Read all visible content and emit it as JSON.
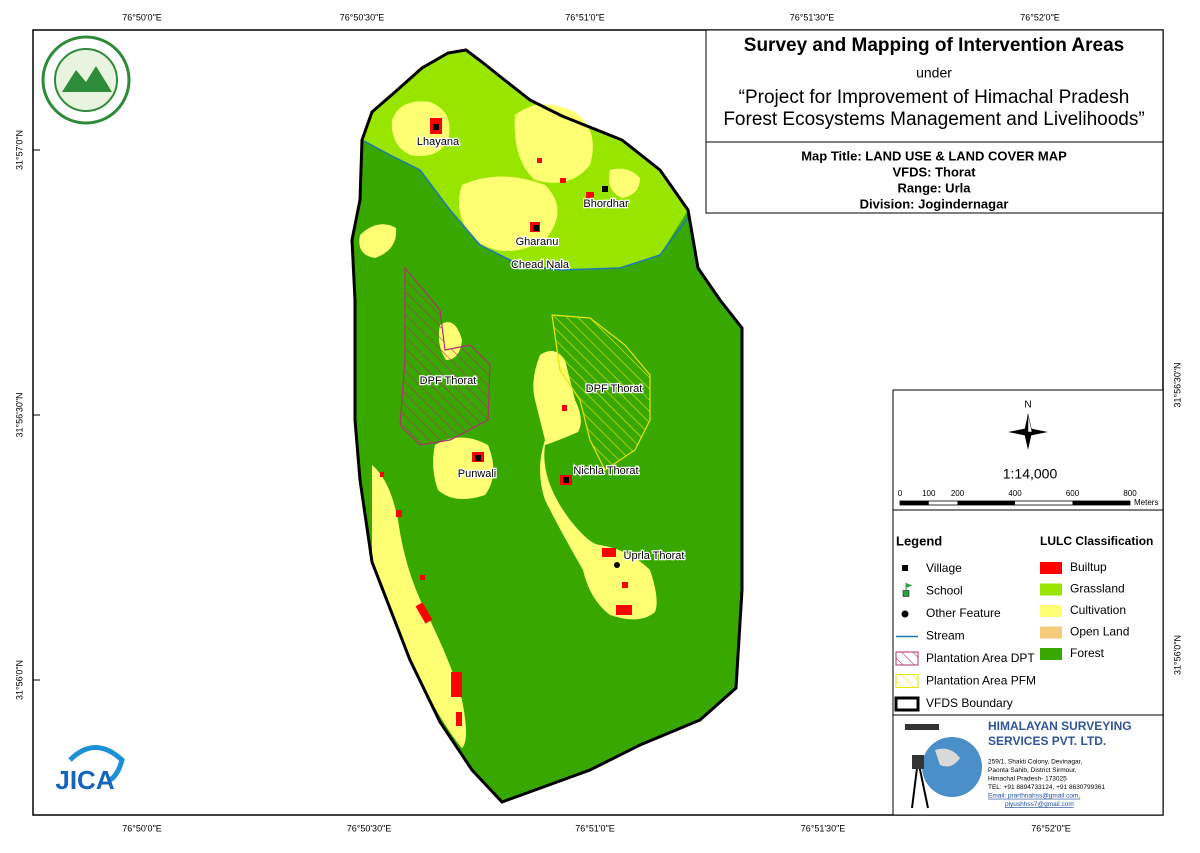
{
  "coordinates": {
    "top": [
      "76°50'0\"E",
      "76°50'30\"E",
      "76°51'0\"E",
      "76°51'30\"E",
      "76°52'0\"E"
    ],
    "bottom": [
      "76°50'0\"E",
      "76°50'30\"E",
      "76°51'0\"E",
      "76°51'30\"E",
      "76°52'0\"E"
    ],
    "left": [
      "31°57'0\"N",
      "31°56'30\"N",
      "31°56'0\"N"
    ],
    "right": [
      "31°56'30\"N",
      "31°56'0\"N"
    ]
  },
  "title_block": {
    "title": "Survey and Mapping of Intervention Areas",
    "under": "under",
    "project": [
      "“Project for Improvement of Himachal Pradesh",
      "Forest Ecosystems Management and Livelihoods”"
    ]
  },
  "map_info": [
    "Map Title: LAND USE & LAND COVER MAP",
    "VFDS: Thorat",
    "Range: Urla",
    "Division: Jogindernagar"
  ],
  "places": [
    "Lhayana",
    "Bhordhar",
    "Gharanu",
    "Chead Nala",
    "DPF Thorat",
    "DPF Thorat",
    "Punwali",
    "Nichla Thorat",
    "Uprla Thorat"
  ],
  "north": "N",
  "scale": "1:14,000",
  "scale_bar": {
    "labels": [
      0,
      100,
      200,
      400,
      600,
      800
    ],
    "max": 800,
    "unit": "Meters"
  },
  "legend": {
    "title": "Legend",
    "items": [
      "Village",
      "School",
      "Other Feature",
      "Stream",
      "Plantation Area DPT",
      "Plantation Area PFM",
      "VFDS Boundary"
    ]
  },
  "lulc": {
    "title": "LULC Classification",
    "classes": [
      {
        "label": "Builtup",
        "color": "#ff0000"
      },
      {
        "label": "Grassland",
        "color": "#98e600"
      },
      {
        "label": "Cultivation",
        "color": "#ffff73"
      },
      {
        "label": "Open Land",
        "color": "#f5ca7a"
      },
      {
        "label": "Forest",
        "color": "#38a800"
      }
    ]
  },
  "company": {
    "name": [
      "HIMALAYAN SURVEYING",
      "SERVICES PVT. LTD."
    ],
    "address": [
      "259/1, Shakti Colony, Devinagar,",
      "Paonta Sahib, District Sirmour,",
      "Himachal Pradesh- 173025",
      "TEL: +91 8894733124, +91 8630799361",
      "Email: prarthnahss@gmail.com,",
      "piyushhss7@gmail.com"
    ]
  },
  "logo": "JICA"
}
